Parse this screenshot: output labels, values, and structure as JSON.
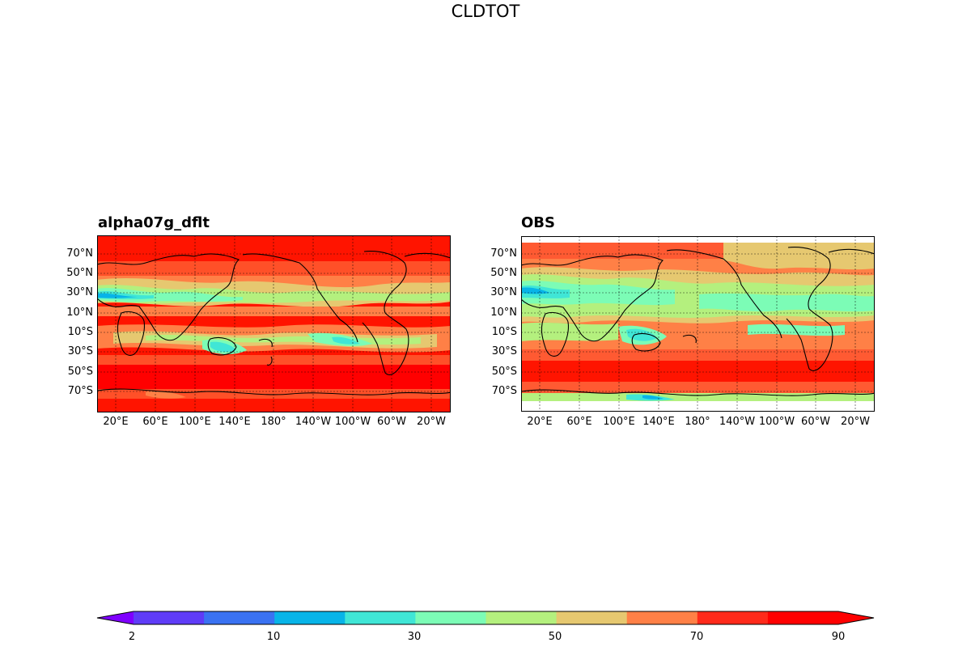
{
  "figure": {
    "title": "CLDTOT"
  },
  "panels": [
    {
      "title": "alpha07g_dflt",
      "lat_labels": [
        "70°N",
        "50°N",
        "30°N",
        "10°N",
        "10°S",
        "30°S",
        "50°S",
        "70°S"
      ],
      "lon_labels": [
        "20°E",
        "60°E",
        "100°E",
        "140°E",
        "180°",
        "140°W",
        "100°W",
        "60°W",
        "20°W"
      ]
    },
    {
      "title": "OBS",
      "lat_labels": [
        "70°N",
        "50°N",
        "30°N",
        "10°N",
        "10°S",
        "30°S",
        "50°S",
        "70°S"
      ],
      "lon_labels": [
        "20°E",
        "60°E",
        "100°E",
        "140°E",
        "180°",
        "140°W",
        "100°W",
        "60°W",
        "20°W"
      ]
    }
  ],
  "colorbar": {
    "tick_labels": [
      "2",
      "10",
      "30",
      "50",
      "70",
      "90"
    ],
    "colors": [
      "#7f00ff",
      "#5f3cf7",
      "#3a72f2",
      "#08b4e8",
      "#40e6d6",
      "#7cfcb6",
      "#b4f07e",
      "#e6c870",
      "#ff8046",
      "#ff2a1a",
      "#ff0000"
    ]
  }
}
